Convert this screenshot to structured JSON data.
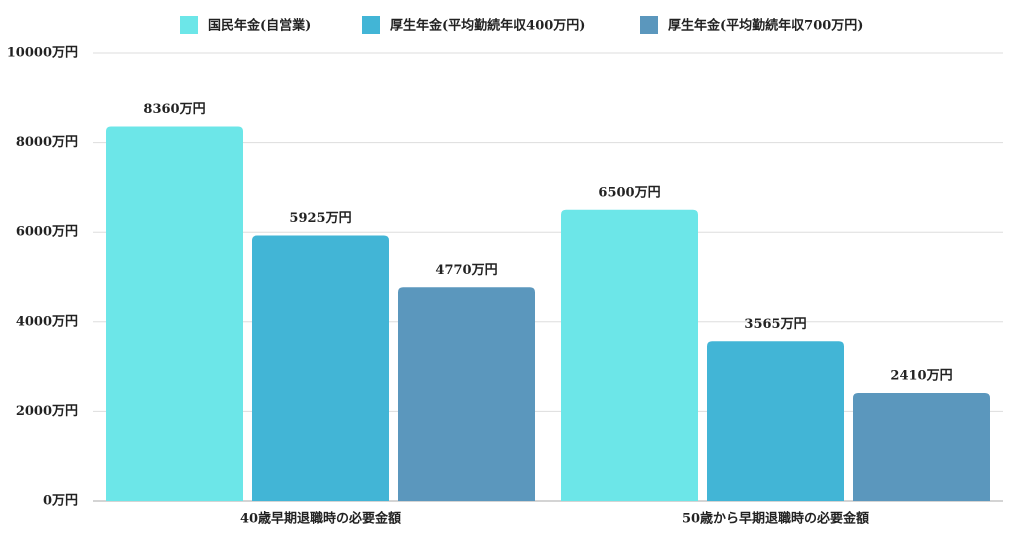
{
  "chart_data": {
    "type": "bar",
    "categories": [
      "40歳早期退職時の必要金額",
      "50歳から早期退職時の必要金額"
    ],
    "series": [
      {
        "name": "国民年金(自営業)",
        "color": "#6ce6e8",
        "values": [
          8360,
          6500
        ],
        "value_labels": [
          "8360万円",
          "6500万円"
        ]
      },
      {
        "name": "厚生年金(平均勤続年収400万円)",
        "color": "#42b5d6",
        "values": [
          5925,
          3565
        ],
        "value_labels": [
          "5925万円",
          "3565万円"
        ]
      },
      {
        "name": "厚生年金(平均勤続年収700万円)",
        "color": "#5b97bd",
        "values": [
          4770,
          2410
        ],
        "value_labels": [
          "4770万円",
          "2410万円"
        ]
      }
    ],
    "ylim": [
      0,
      10000
    ],
    "yticks": [
      {
        "value": 0,
        "label": "0万円"
      },
      {
        "value": 2000,
        "label": "2000万円"
      },
      {
        "value": 4000,
        "label": "4000万円"
      },
      {
        "value": 6000,
        "label": "6000万円"
      },
      {
        "value": 8000,
        "label": "8000万円"
      },
      {
        "value": 10000,
        "label": "10000万円"
      }
    ],
    "grid": true,
    "legend": "top"
  }
}
